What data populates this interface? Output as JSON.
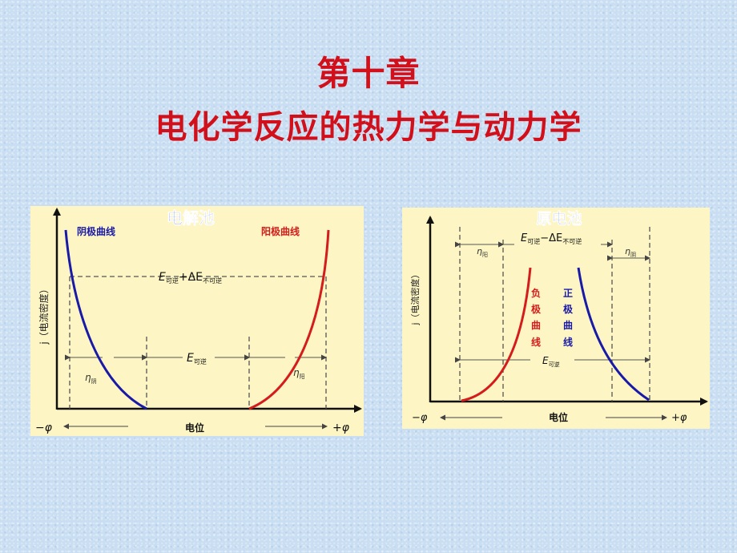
{
  "slide": {
    "title_line1": "第十章",
    "title_line2": "电化学反应的热力学与动力学"
  },
  "electrolysis": {
    "title": "电解池",
    "cathode_label": "阴极曲线",
    "anode_label": "阳极曲线",
    "ylabel": "j（电流密度）",
    "xlabel": "电位",
    "x_neg": "−φ",
    "x_pos": "+φ",
    "top_label_main": "E",
    "top_label_sub1": "可逆",
    "top_label_mid": "+ΔE",
    "top_label_sub2": "不可逆",
    "rev_label_main": "E",
    "rev_label_sub": "可逆",
    "eta_cathode_main": "η",
    "eta_cathode_sub": "阴",
    "eta_anode_main": "η",
    "eta_anode_sub": "阳"
  },
  "galvanic": {
    "title": "原电池",
    "ylabel": "j（电流密度）",
    "xlabel": "电位",
    "x_neg": "−φ",
    "x_pos": "+φ",
    "top_label_main": "E",
    "top_label_sub1": "可逆",
    "top_label_mid": "−ΔE",
    "top_label_sub2": "不可逆",
    "neg_curve_chars": [
      "负",
      "极",
      "曲",
      "线"
    ],
    "pos_curve_chars": [
      "正",
      "极",
      "曲",
      "线"
    ],
    "rev_label_main": "E",
    "rev_label_sub": "可逆",
    "eta_left_main": "η",
    "eta_left_sub": "阳",
    "eta_right_main": "η",
    "eta_right_sub": "阴"
  },
  "colors": {
    "title": "#d1101b",
    "cathode_curve": "#1a1aa8",
    "anode_curve": "#d41c1c",
    "diagram_title": "#1f4fd0",
    "panel_bg": "#fdf6c4"
  }
}
